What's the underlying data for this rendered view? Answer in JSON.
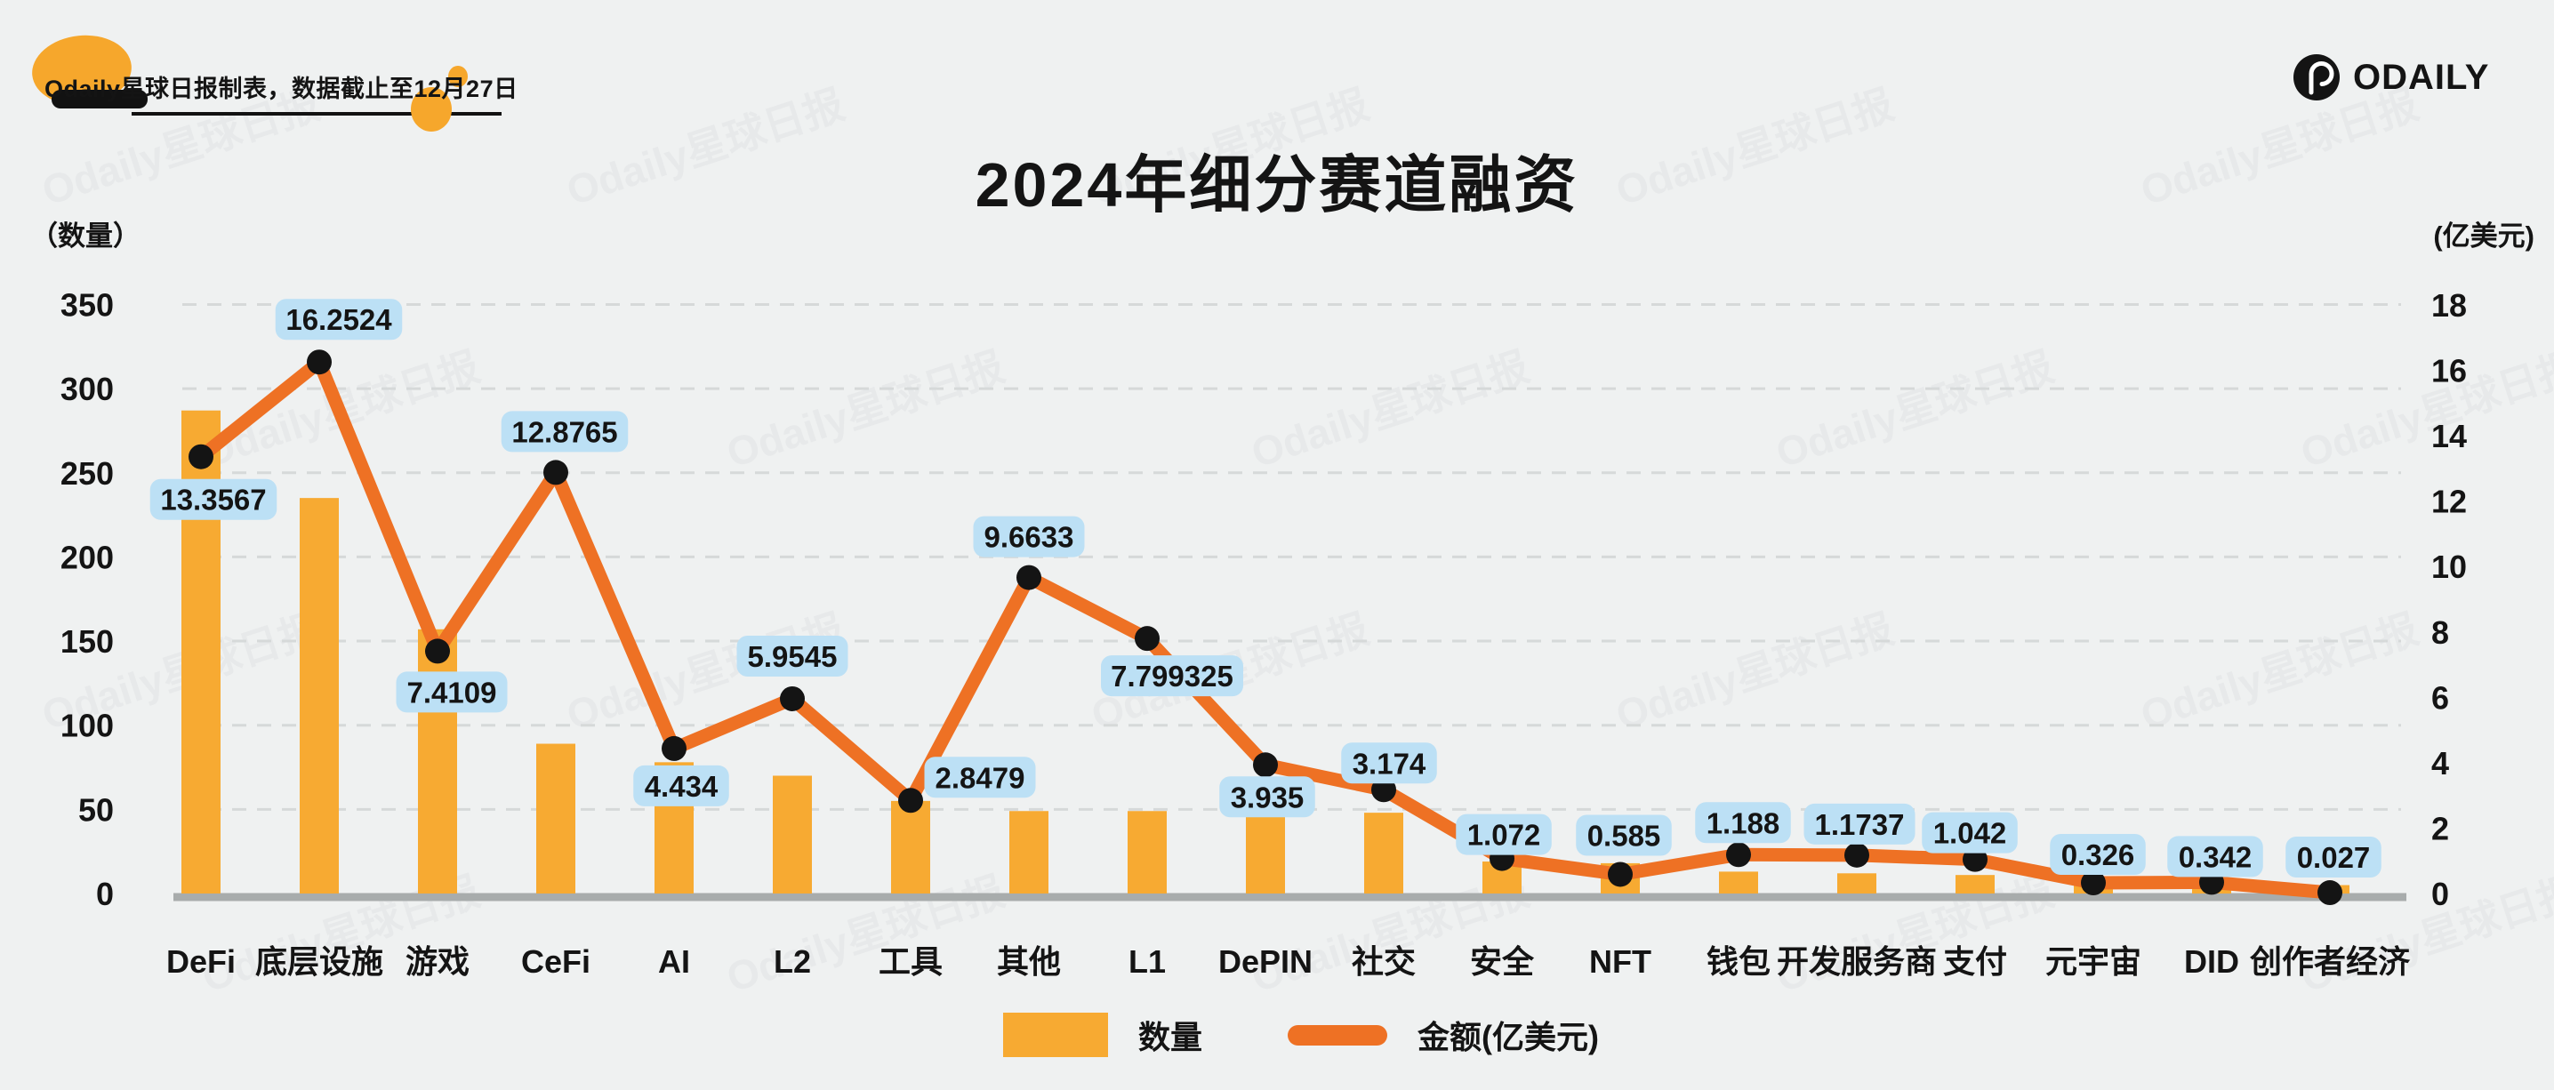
{
  "header": {
    "credit": "Odaily星球日报制表，数据截止至12月27日",
    "logo_text": "ODAILY"
  },
  "title": "2024年细分赛道融资",
  "axes": {
    "left_unit": "（数量）",
    "right_unit": "(亿美元)",
    "left_ticks": [
      0,
      50,
      100,
      150,
      200,
      250,
      300,
      350
    ],
    "right_ticks": [
      0,
      2,
      4,
      6,
      8,
      10,
      12,
      14,
      16,
      18
    ]
  },
  "legend": {
    "bar_label": "数量",
    "line_label": "金额(亿美元)"
  },
  "colors": {
    "background": "#eff1f1",
    "bar": "#f7aa32",
    "line": "#ee7124",
    "dot": "#141414",
    "bubble": "#bce0f5",
    "gridline": "#d6d9d9",
    "baseline": "#a8acac",
    "accent_orange": "#f6a72c",
    "text": "#141414"
  },
  "watermark": {
    "text": "Odaily星球日报"
  },
  "chart_data": {
    "type": "bar",
    "subtype": "combo-bar-line-dual-axis",
    "title": "2024年细分赛道融资",
    "categories": [
      "DeFi",
      "底层设施",
      "游戏",
      "CeFi",
      "AI",
      "L2",
      "工具",
      "其他",
      "L1",
      "DePIN",
      "社交",
      "安全",
      "NFT",
      "钱包",
      "开发服务商",
      "支付",
      "元宇宙",
      "DID",
      "创作者经济"
    ],
    "series": [
      {
        "name": "数量",
        "type": "bar",
        "axis": "left",
        "note": "values estimated from bar heights",
        "values": [
          287,
          235,
          157,
          89,
          78,
          70,
          55,
          49,
          49,
          47,
          48,
          19,
          18,
          13,
          12,
          11,
          8,
          7,
          5
        ]
      },
      {
        "name": "金额(亿美元)",
        "type": "line",
        "axis": "right",
        "values": [
          13.3567,
          16.2524,
          7.4109,
          12.8765,
          4.434,
          5.9545,
          2.8479,
          9.6633,
          7.799325,
          3.935,
          3.174,
          1.072,
          0.585,
          1.188,
          1.1737,
          1.042,
          0.326,
          0.342,
          0.027
        ],
        "labels": [
          "13.3567",
          "16.2524",
          "7.4109",
          "12.8765",
          "4.434",
          "5.9545",
          "2.8479",
          "9.6633",
          "7.799325",
          "3.935",
          "3.174",
          "1.072",
          "0.585",
          "1.188",
          "1.1737",
          "1.042",
          "0.326",
          "0.342",
          "0.027"
        ]
      }
    ],
    "left_ylim": [
      0,
      350
    ],
    "right_ylim": [
      0,
      18
    ],
    "grid": true,
    "legend_position": "bottom"
  }
}
